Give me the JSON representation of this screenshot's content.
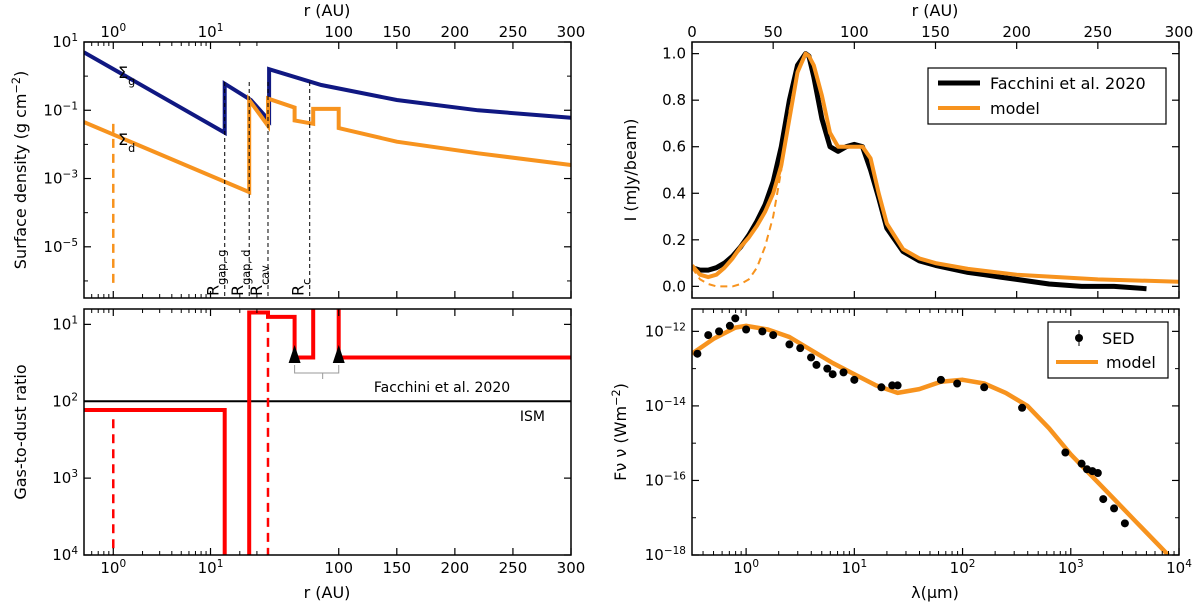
{
  "chart_data": [
    {
      "panel": "top-left",
      "type": "line",
      "xlabel": "r (AU)",
      "xlabel_top": "r (AU)",
      "ylabel": "Surface density (g cm^-2)",
      "x_scale": "log below 40 AU, linear above",
      "xlim": [
        0.5,
        300
      ],
      "ylim_log10": [
        -6.5,
        1
      ],
      "x_ticks": [
        "10^0",
        "10^1",
        "100",
        "150",
        "200",
        "250",
        "300"
      ],
      "y_ticks": [
        "10^1",
        "10^-1",
        "10^-3",
        "10^-5"
      ],
      "colors": {
        "gas": "#101882",
        "dust": "#f7931e",
        "annot": "#000000"
      },
      "series": [
        {
          "name": "Σg",
          "label_main": "Σ",
          "label_sub": "g",
          "points": [
            [
              0.5,
              5.0
            ],
            [
              14,
              0.022
            ],
            [
              14,
              0.6
            ],
            [
              26,
              0.2
            ],
            [
              40,
              0.05
            ],
            [
              40,
              1.6
            ],
            [
              85,
              0.55
            ],
            [
              150,
              0.2
            ],
            [
              220,
              0.1
            ],
            [
              300,
              0.06
            ]
          ]
        },
        {
          "name": "Σd",
          "label_main": "Σ",
          "label_sub": "d",
          "points": [
            [
              0.5,
              0.045
            ],
            [
              25,
              0.0004
            ],
            [
              25,
              0.2
            ],
            [
              39,
              0.035
            ],
            [
              39,
              0.22
            ],
            [
              62,
              0.12
            ],
            [
              62,
              0.05
            ],
            [
              78,
              0.04
            ],
            [
              78,
              0.11
            ],
            [
              100,
              0.11
            ],
            [
              100,
              0.03
            ],
            [
              150,
              0.012
            ],
            [
              220,
              0.0055
            ],
            [
              300,
              0.0025
            ]
          ]
        }
      ],
      "dust_inner_edge_r": 1.0,
      "radii_markers": [
        {
          "name": "R_gap,g",
          "main": "R",
          "sub": "gap, g",
          "r": 14
        },
        {
          "name": "R_gap,d",
          "main": "R",
          "sub": "gap, d",
          "r": 25
        },
        {
          "name": "R_cav",
          "main": "R",
          "sub": "cav",
          "r": 39
        },
        {
          "name": "R_c",
          "main": "R",
          "sub": "c",
          "r": 75
        }
      ]
    },
    {
      "panel": "bottom-left",
      "type": "line",
      "xlabel": "r (AU)",
      "ylabel": "Gas-to-dust ratio",
      "xlim": [
        0.5,
        300
      ],
      "y_ticks": [
        "10^1",
        "10^2",
        "10^3",
        "10^4"
      ],
      "y_axis_inverted": true,
      "colors": {
        "ratio": "#ff0000",
        "ism": "#000000"
      },
      "series": [
        {
          "name": "gas-to-dust ratio",
          "points": [
            [
              0.5,
              130
            ],
            [
              14,
              130
            ],
            [
              14,
              15000
            ],
            [
              25,
              15000
            ],
            [
              25,
              7
            ],
            [
              39,
              7
            ],
            [
              39,
              8
            ],
            [
              62,
              8
            ],
            [
              62,
              27
            ],
            [
              78,
              27
            ],
            [
              78,
              6
            ],
            [
              100,
              6
            ],
            [
              100,
              27
            ],
            [
              300,
              27
            ]
          ]
        }
      ],
      "ism_value": 100,
      "ism_label": "ISM",
      "inner_edge_markers_r": [
        1.0,
        39
      ],
      "observed_lower_limits": [
        {
          "r": 62,
          "value": 25
        },
        {
          "r": 100,
          "value": 25
        }
      ],
      "annotation": "Facchini et al. 2020"
    },
    {
      "panel": "top-right",
      "type": "line",
      "xlabel_top": "r (AU)",
      "ylabel": "I (mJy/beam)",
      "xlim": [
        0,
        300
      ],
      "ylim": [
        -0.05,
        1.05
      ],
      "x_ticks": [
        "0",
        "50",
        "100",
        "150",
        "200",
        "250",
        "300"
      ],
      "y_ticks": [
        "0.0",
        "0.2",
        "0.4",
        "0.6",
        "0.8",
        "1.0"
      ],
      "colors": {
        "obs": "#000000",
        "model": "#f7931e"
      },
      "series": [
        {
          "name": "Facchini et al. 2020",
          "x": [
            0,
            5,
            10,
            15,
            20,
            25,
            30,
            35,
            40,
            45,
            50,
            55,
            60,
            65,
            70,
            72,
            75,
            80,
            85,
            90,
            95,
            100,
            105,
            110,
            115,
            120,
            130,
            140,
            150,
            160,
            170,
            180,
            190,
            200,
            220,
            240,
            260,
            280
          ],
          "y": [
            0.08,
            0.07,
            0.07,
            0.08,
            0.1,
            0.13,
            0.17,
            0.22,
            0.28,
            0.35,
            0.45,
            0.6,
            0.8,
            0.95,
            1.0,
            0.99,
            0.9,
            0.72,
            0.6,
            0.58,
            0.6,
            0.61,
            0.6,
            0.5,
            0.38,
            0.25,
            0.15,
            0.11,
            0.09,
            0.075,
            0.06,
            0.05,
            0.04,
            0.03,
            0.01,
            0.0,
            0.0,
            -0.01
          ]
        },
        {
          "name": "model",
          "x": [
            0,
            5,
            10,
            15,
            20,
            25,
            30,
            35,
            40,
            45,
            50,
            55,
            60,
            65,
            70,
            72,
            75,
            80,
            85,
            90,
            95,
            100,
            105,
            110,
            115,
            120,
            130,
            140,
            150,
            170,
            200,
            250,
            300
          ],
          "y": [
            0.09,
            0.05,
            0.04,
            0.05,
            0.08,
            0.12,
            0.17,
            0.21,
            0.26,
            0.32,
            0.4,
            0.52,
            0.72,
            0.92,
            1.0,
            0.99,
            0.95,
            0.82,
            0.66,
            0.6,
            0.6,
            0.6,
            0.6,
            0.55,
            0.4,
            0.27,
            0.16,
            0.12,
            0.1,
            0.075,
            0.05,
            0.03,
            0.02
          ]
        },
        {
          "name": "model (dashed)",
          "x": [
            0,
            5,
            10,
            15,
            20,
            25,
            30,
            35,
            40,
            45,
            50,
            55,
            60,
            65,
            70
          ],
          "y": [
            0.08,
            0.03,
            0.01,
            0.0,
            0.0,
            0.0,
            0.01,
            0.03,
            0.08,
            0.17,
            0.3,
            0.5,
            0.75,
            0.93,
            1.0
          ]
        }
      ],
      "legend": [
        "Facchini et al. 2020",
        "model"
      ],
      "legend_position": "top-right"
    },
    {
      "panel": "bottom-right",
      "type": "scatter",
      "xlabel": "λ(μm)",
      "ylabel": "Fν ν (Wm^-2)",
      "x_scale": "log",
      "y_scale": "log",
      "xlim_log10": [
        -0.5,
        4.0
      ],
      "ylim_log10": [
        -18.0,
        -11.4
      ],
      "x_ticks": [
        "10^0",
        "10^1",
        "10^2",
        "10^3",
        "10^4"
      ],
      "y_ticks": [
        "10^-12",
        "10^-14",
        "10^-16",
        "10^-18"
      ],
      "colors": {
        "sed": "#000000",
        "model": "#f7931e"
      },
      "series": [
        {
          "name": "SED",
          "logx": [
            -0.45,
            -0.35,
            -0.25,
            -0.15,
            -0.1,
            0.0,
            0.15,
            0.25,
            0.4,
            0.5,
            0.6,
            0.65,
            0.75,
            0.8,
            0.9,
            1.0,
            1.25,
            1.35,
            1.4,
            1.8,
            1.95,
            2.2,
            2.55,
            2.95,
            3.1,
            3.15,
            3.2,
            3.25,
            3.3,
            3.4,
            3.5
          ],
          "logy": [
            -12.6,
            -12.1,
            -12.0,
            -11.85,
            -11.65,
            -11.95,
            -12.0,
            -12.1,
            -12.35,
            -12.45,
            -12.7,
            -12.9,
            -13.0,
            -13.15,
            -13.1,
            -13.3,
            -13.5,
            -13.45,
            -13.45,
            -13.3,
            -13.4,
            -13.5,
            -14.05,
            -15.25,
            -15.55,
            -15.7,
            -15.75,
            -15.8,
            -16.5,
            -16.75,
            -17.15
          ]
        },
        {
          "name": "model",
          "logx": [
            -0.5,
            -0.3,
            -0.1,
            0.0,
            0.2,
            0.4,
            0.6,
            0.8,
            1.0,
            1.2,
            1.4,
            1.6,
            1.8,
            2.0,
            2.2,
            2.4,
            2.6,
            2.8,
            3.0,
            3.2,
            3.4,
            3.6,
            3.8,
            3.9
          ],
          "logy": [
            -12.6,
            -12.2,
            -11.9,
            -11.85,
            -11.95,
            -12.15,
            -12.5,
            -12.85,
            -13.15,
            -13.45,
            -13.65,
            -13.55,
            -13.35,
            -13.3,
            -13.4,
            -13.65,
            -14.0,
            -14.6,
            -15.3,
            -15.9,
            -16.5,
            -17.1,
            -17.7,
            -18.0
          ]
        }
      ],
      "legend": [
        "SED",
        "model"
      ],
      "legend_position": "top-right"
    }
  ]
}
